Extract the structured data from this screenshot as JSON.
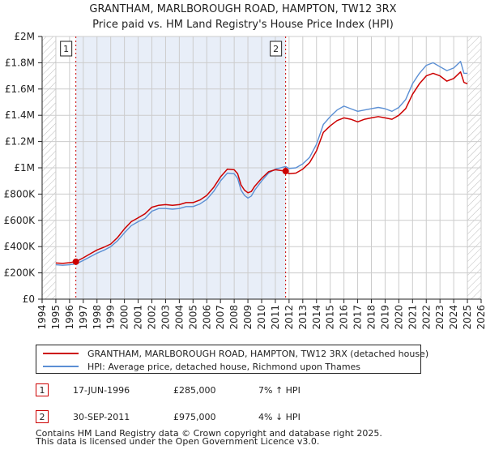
{
  "chart_data": {
    "type": "line",
    "title": "GRANTHAM, MARLBOROUGH ROAD, HAMPTON, TW12 3RX",
    "subtitle": "Price paid vs. HM Land Registry's House Price Index (HPI)",
    "xlabel": "",
    "ylabel": "",
    "xlim": [
      1994,
      2026
    ],
    "ylim": [
      0,
      2000000
    ],
    "x_ticks": [
      1994,
      1995,
      1996,
      1997,
      1998,
      1999,
      2000,
      2001,
      2002,
      2003,
      2004,
      2005,
      2006,
      2007,
      2008,
      2009,
      2010,
      2011,
      2012,
      2013,
      2014,
      2015,
      2016,
      2017,
      2018,
      2019,
      2020,
      2021,
      2022,
      2023,
      2024,
      2025,
      2026
    ],
    "y_ticks": [
      {
        "value": 0,
        "label": "£0"
      },
      {
        "value": 200000,
        "label": "£200K"
      },
      {
        "value": 400000,
        "label": "£400K"
      },
      {
        "value": 600000,
        "label": "£600K"
      },
      {
        "value": 800000,
        "label": "£800K"
      },
      {
        "value": 1000000,
        "label": "£1M"
      },
      {
        "value": 1200000,
        "label": "£1.2M"
      },
      {
        "value": 1400000,
        "label": "£1.4M"
      },
      {
        "value": 1600000,
        "label": "£1.6M"
      },
      {
        "value": 1800000,
        "label": "£1.8M"
      },
      {
        "value": 2000000,
        "label": "£2M"
      }
    ],
    "grid": true,
    "shaded_range": [
      1996.46,
      2011.75
    ],
    "hatched_ranges": [
      [
        1994,
        1995
      ],
      [
        2025,
        2026
      ]
    ],
    "series": [
      {
        "name": "GRANTHAM, MARLBOROUGH ROAD, HAMPTON, TW12 3RX (detached house)",
        "color": "#cc0000",
        "points": [
          [
            1995.0,
            275000
          ],
          [
            1995.5,
            272000
          ],
          [
            1996.0,
            278000
          ],
          [
            1996.46,
            285000
          ],
          [
            1997.0,
            315000
          ],
          [
            1997.5,
            345000
          ],
          [
            1998.0,
            375000
          ],
          [
            1998.5,
            395000
          ],
          [
            1999.0,
            420000
          ],
          [
            1999.5,
            470000
          ],
          [
            2000.0,
            535000
          ],
          [
            2000.5,
            590000
          ],
          [
            2001.0,
            620000
          ],
          [
            2001.5,
            650000
          ],
          [
            2002.0,
            700000
          ],
          [
            2002.5,
            715000
          ],
          [
            2003.0,
            720000
          ],
          [
            2003.5,
            715000
          ],
          [
            2004.0,
            720000
          ],
          [
            2004.5,
            735000
          ],
          [
            2005.0,
            735000
          ],
          [
            2005.5,
            755000
          ],
          [
            2006.0,
            790000
          ],
          [
            2006.5,
            850000
          ],
          [
            2007.0,
            930000
          ],
          [
            2007.5,
            990000
          ],
          [
            2008.0,
            985000
          ],
          [
            2008.25,
            955000
          ],
          [
            2008.5,
            870000
          ],
          [
            2008.75,
            830000
          ],
          [
            2009.0,
            810000
          ],
          [
            2009.25,
            820000
          ],
          [
            2009.5,
            860000
          ],
          [
            2010.0,
            920000
          ],
          [
            2010.5,
            970000
          ],
          [
            2011.0,
            985000
          ],
          [
            2011.75,
            975000
          ],
          [
            2012.0,
            955000
          ],
          [
            2012.5,
            960000
          ],
          [
            2013.0,
            990000
          ],
          [
            2013.5,
            1040000
          ],
          [
            2014.0,
            1130000
          ],
          [
            2014.5,
            1270000
          ],
          [
            2015.0,
            1320000
          ],
          [
            2015.5,
            1360000
          ],
          [
            2016.0,
            1380000
          ],
          [
            2016.5,
            1370000
          ],
          [
            2017.0,
            1350000
          ],
          [
            2017.5,
            1370000
          ],
          [
            2018.0,
            1380000
          ],
          [
            2018.5,
            1390000
          ],
          [
            2019.0,
            1380000
          ],
          [
            2019.5,
            1370000
          ],
          [
            2020.0,
            1400000
          ],
          [
            2020.5,
            1450000
          ],
          [
            2021.0,
            1560000
          ],
          [
            2021.5,
            1640000
          ],
          [
            2022.0,
            1700000
          ],
          [
            2022.5,
            1720000
          ],
          [
            2023.0,
            1700000
          ],
          [
            2023.5,
            1660000
          ],
          [
            2024.0,
            1680000
          ],
          [
            2024.5,
            1730000
          ],
          [
            2024.75,
            1650000
          ],
          [
            2025.0,
            1640000
          ]
        ]
      },
      {
        "name": "HPI: Average price, detached house, Richmond upon Thames",
        "color": "#5b8fd4",
        "points": [
          [
            1995.0,
            262000
          ],
          [
            1995.5,
            258000
          ],
          [
            1996.0,
            262000
          ],
          [
            1996.46,
            268000
          ],
          [
            1997.0,
            295000
          ],
          [
            1997.5,
            322000
          ],
          [
            1998.0,
            350000
          ],
          [
            1998.5,
            372000
          ],
          [
            1999.0,
            400000
          ],
          [
            1999.5,
            445000
          ],
          [
            2000.0,
            505000
          ],
          [
            2000.5,
            560000
          ],
          [
            2001.0,
            590000
          ],
          [
            2001.5,
            615000
          ],
          [
            2002.0,
            670000
          ],
          [
            2002.5,
            690000
          ],
          [
            2003.0,
            690000
          ],
          [
            2003.5,
            685000
          ],
          [
            2004.0,
            690000
          ],
          [
            2004.5,
            705000
          ],
          [
            2005.0,
            705000
          ],
          [
            2005.5,
            725000
          ],
          [
            2006.0,
            760000
          ],
          [
            2006.5,
            820000
          ],
          [
            2007.0,
            900000
          ],
          [
            2007.5,
            960000
          ],
          [
            2008.0,
            955000
          ],
          [
            2008.25,
            920000
          ],
          [
            2008.5,
            830000
          ],
          [
            2008.75,
            790000
          ],
          [
            2009.0,
            770000
          ],
          [
            2009.25,
            785000
          ],
          [
            2009.5,
            830000
          ],
          [
            2010.0,
            900000
          ],
          [
            2010.5,
            960000
          ],
          [
            2011.0,
            990000
          ],
          [
            2011.75,
            1010000
          ],
          [
            2012.0,
            995000
          ],
          [
            2012.5,
            1000000
          ],
          [
            2013.0,
            1030000
          ],
          [
            2013.5,
            1080000
          ],
          [
            2014.0,
            1180000
          ],
          [
            2014.5,
            1330000
          ],
          [
            2015.0,
            1390000
          ],
          [
            2015.5,
            1440000
          ],
          [
            2016.0,
            1470000
          ],
          [
            2016.5,
            1450000
          ],
          [
            2017.0,
            1430000
          ],
          [
            2017.5,
            1440000
          ],
          [
            2018.0,
            1450000
          ],
          [
            2018.5,
            1460000
          ],
          [
            2019.0,
            1450000
          ],
          [
            2019.5,
            1430000
          ],
          [
            2020.0,
            1460000
          ],
          [
            2020.5,
            1520000
          ],
          [
            2021.0,
            1640000
          ],
          [
            2021.5,
            1720000
          ],
          [
            2022.0,
            1780000
          ],
          [
            2022.5,
            1800000
          ],
          [
            2023.0,
            1770000
          ],
          [
            2023.5,
            1740000
          ],
          [
            2024.0,
            1760000
          ],
          [
            2024.5,
            1810000
          ],
          [
            2024.75,
            1720000
          ],
          [
            2025.0,
            1720000
          ]
        ]
      }
    ],
    "sales": [
      {
        "id": "1",
        "x": 1996.46,
        "value": 285000,
        "date": "17-JUN-1996",
        "price": "£285,000",
        "hpi": "7% ↑ HPI"
      },
      {
        "id": "2",
        "x": 2011.75,
        "value": 975000,
        "date": "30-SEP-2011",
        "price": "£975,000",
        "hpi": "4% ↓ HPI"
      }
    ]
  },
  "legend": {
    "property_label": "GRANTHAM, MARLBOROUGH ROAD, HAMPTON, TW12 3RX (detached house)",
    "hpi_label": "HPI: Average price, detached house, Richmond upon Thames"
  },
  "footer": {
    "line1": "Contains HM Land Registry data © Crown copyright and database right 2025.",
    "line2": "This data is licensed under the Open Government Licence v3.0."
  },
  "colors": {
    "property": "#cc0000",
    "hpi": "#5b8fd4",
    "shade": "#e8eef8",
    "grid": "#cccccc"
  }
}
